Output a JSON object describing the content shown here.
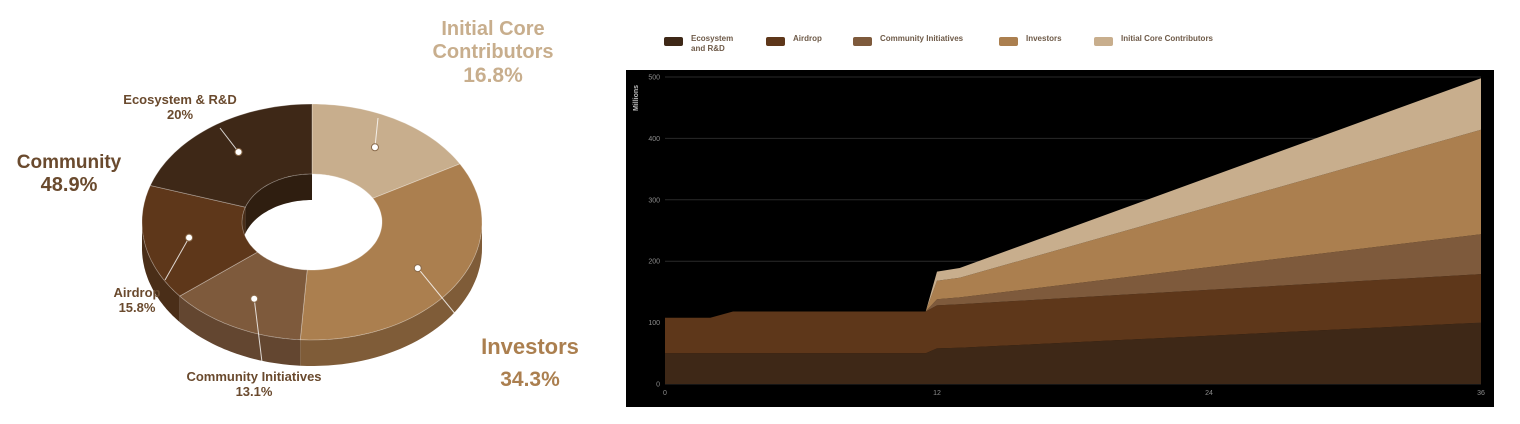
{
  "colors": {
    "ecosystem": "#3e2817",
    "airdrop": "#5e371a",
    "community_initiatives": "#7e5a3c",
    "investors": "#ab7f4f",
    "initial_core": "#c8ae8d",
    "chart_bg": "#000000"
  },
  "chart_data": [
    {
      "type": "pie",
      "variant": "donut",
      "slices": [
        {
          "label": "Initial Core Contributors",
          "value": 16.8,
          "display": "16.8%"
        },
        {
          "label": "Investors",
          "value": 34.3,
          "display": "34.3%"
        },
        {
          "label": "Community Initiatives",
          "value": 13.1,
          "display": "13.1%"
        },
        {
          "label": "Airdrop",
          "value": 15.8,
          "display": "15.8%"
        },
        {
          "label": "Ecosystem & R&D",
          "value": 20,
          "display": "20%"
        }
      ],
      "group": {
        "label": "Community",
        "value": 48.9,
        "display": "48.9%",
        "members": [
          "Community Initiatives",
          "Airdrop",
          "Ecosystem & R&D"
        ]
      }
    },
    {
      "type": "area",
      "stacked": true,
      "ylabel": "Millions",
      "xticks": [
        0,
        12,
        24,
        36
      ],
      "yticks": [
        0,
        100,
        200,
        300,
        400,
        500
      ],
      "xlim": [
        0,
        36
      ],
      "ylim": [
        0,
        500
      ],
      "grid": true,
      "legend_position": "top",
      "x": [
        0,
        2,
        3,
        11.5,
        12,
        13,
        36
      ],
      "series": [
        {
          "name": "Ecosystem and R&D",
          "values": [
            50,
            50,
            50,
            50,
            58,
            59,
            100
          ]
        },
        {
          "name": "Airdrop",
          "values": [
            58,
            58,
            68,
            68,
            70,
            71,
            79
          ]
        },
        {
          "name": "Community Initiatives",
          "values": [
            0,
            0,
            0,
            0,
            10,
            11,
            65
          ]
        },
        {
          "name": "Investors",
          "values": [
            0,
            0,
            0,
            0,
            30,
            32,
            170
          ]
        },
        {
          "name": "Initial Core Contributors",
          "values": [
            0,
            0,
            0,
            0,
            15,
            16,
            84
          ]
        }
      ]
    }
  ]
}
